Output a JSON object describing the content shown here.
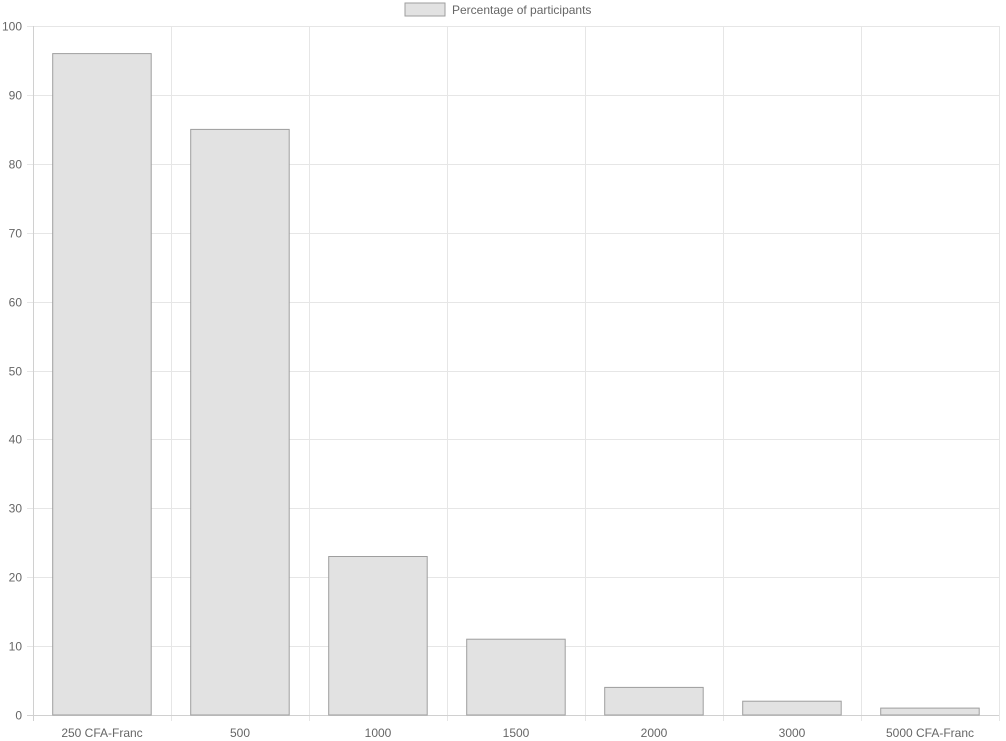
{
  "chart_data": {
    "type": "bar",
    "categories": [
      "250 CFA-Franc",
      "500",
      "1000",
      "1500",
      "2000",
      "3000",
      "5000 CFA-Franc"
    ],
    "series": [
      {
        "name": "Percentage of participants",
        "values": [
          96,
          85,
          23,
          11,
          4,
          2,
          1
        ]
      }
    ],
    "ylim": [
      0,
      100
    ],
    "yticks": [
      0,
      10,
      20,
      30,
      40,
      50,
      60,
      70,
      80,
      90,
      100
    ],
    "grid": true,
    "legend": "top-center",
    "colors": {
      "bar_fill": "#e2e2e2",
      "bar_stroke": "#9e9e9e",
      "grid": "#e6e6e6",
      "text": "#666666"
    }
  }
}
